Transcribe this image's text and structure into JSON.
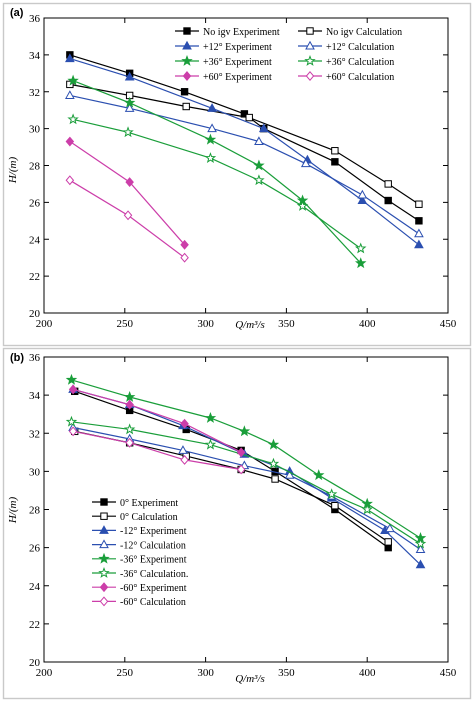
{
  "figure": {
    "frame_color": "#c9c9c9",
    "caption": ""
  },
  "chart_data": [
    {
      "panel_label": "(a)",
      "type": "line",
      "xlabel": "Q/m³/s",
      "ylabel": "H/(m)",
      "xlim": [
        200,
        450
      ],
      "ylim": [
        20,
        36
      ],
      "xticks": [
        200,
        250,
        300,
        350,
        400,
        450
      ],
      "yticks": [
        20,
        22,
        24,
        26,
        28,
        30,
        32,
        34,
        36
      ],
      "grid": false,
      "legend_position": "top-right",
      "legend_columns": 2,
      "series": [
        {
          "name": "No igv Experiment",
          "color": "#000000",
          "marker": "filled-square",
          "x": [
            216,
            253,
            287,
            324,
            336,
            380,
            413,
            432
          ],
          "y": [
            34.0,
            33.0,
            32.0,
            30.8,
            30.0,
            28.2,
            26.1,
            25.0
          ]
        },
        {
          "name": "No igv  Calculation",
          "color": "#000000",
          "marker": "open-square",
          "x": [
            216,
            253,
            288,
            327,
            380,
            413,
            432
          ],
          "y": [
            32.4,
            31.8,
            31.2,
            30.6,
            28.8,
            27.0,
            25.9
          ]
        },
        {
          "name": "+12° Experiment",
          "color": "#2b4fb0",
          "marker": "filled-triangle",
          "x": [
            216,
            253,
            304,
            336,
            363,
            397,
            432
          ],
          "y": [
            33.8,
            32.8,
            31.1,
            30.0,
            28.3,
            26.1,
            23.7
          ]
        },
        {
          "name": "+12° Calculation",
          "color": "#2b4fb0",
          "marker": "open-triangle",
          "x": [
            216,
            253,
            304,
            333,
            362,
            397,
            432
          ],
          "y": [
            31.8,
            31.1,
            30.0,
            29.3,
            28.1,
            26.4,
            24.3
          ]
        },
        {
          "name": "+36° Experiment",
          "color": "#1a9e3a",
          "marker": "filled-star",
          "x": [
            218,
            253,
            303,
            333,
            360,
            396
          ],
          "y": [
            32.6,
            31.4,
            29.4,
            28.0,
            26.1,
            22.7
          ]
        },
        {
          "name": "+36° Calculation",
          "color": "#1a9e3a",
          "marker": "open-star",
          "x": [
            218,
            252,
            303,
            333,
            360,
            396
          ],
          "y": [
            30.5,
            29.8,
            28.4,
            27.2,
            25.8,
            23.5
          ]
        },
        {
          "name": "+60° Experiment",
          "color": "#cc3ea9",
          "marker": "filled-diamond",
          "x": [
            216,
            253,
            287
          ],
          "y": [
            29.3,
            27.1,
            23.7
          ]
        },
        {
          "name": "+60° Calculation",
          "color": "#cc3ea9",
          "marker": "open-diamond",
          "x": [
            216,
            252,
            287
          ],
          "y": [
            27.2,
            25.3,
            23.0
          ]
        }
      ]
    },
    {
      "panel_label": "(b)",
      "type": "line",
      "xlabel": "Q/m³/s",
      "ylabel": "H/(m)",
      "xlim": [
        200,
        450
      ],
      "ylim": [
        20,
        36
      ],
      "xticks": [
        200,
        250,
        300,
        350,
        400,
        450
      ],
      "yticks": [
        20,
        22,
        24,
        26,
        28,
        30,
        32,
        34,
        36
      ],
      "grid": false,
      "legend_position": "bottom-left",
      "legend_columns": 1,
      "series": [
        {
          "name": "0° Experiment",
          "color": "#000000",
          "marker": "filled-square",
          "x": [
            219,
            253,
            288,
            322,
            343,
            380,
            413
          ],
          "y": [
            34.2,
            33.2,
            32.2,
            31.1,
            30.0,
            28.0,
            26.0
          ]
        },
        {
          "name": "0° Calculation",
          "color": "#000000",
          "marker": "open-square",
          "x": [
            219,
            253,
            288,
            322,
            343,
            380,
            413
          ],
          "y": [
            32.1,
            31.5,
            30.8,
            30.1,
            29.6,
            28.2,
            26.3
          ]
        },
        {
          "name": "-12° Experiment",
          "color": "#2b4fb0",
          "marker": "filled-triangle",
          "x": [
            218,
            253,
            286,
            324,
            352,
            378,
            411,
            433
          ],
          "y": [
            34.3,
            33.5,
            32.4,
            30.9,
            30.0,
            28.6,
            26.9,
            25.1
          ]
        },
        {
          "name": "-12° Calculation",
          "color": "#2b4fb0",
          "marker": "open-triangle",
          "x": [
            218,
            253,
            286,
            324,
            352,
            378,
            414,
            433
          ],
          "y": [
            32.3,
            31.7,
            31.1,
            30.3,
            29.8,
            28.7,
            27.0,
            25.9
          ]
        },
        {
          "name": "-36° Experiment",
          "color": "#1a9e3a",
          "marker": "filled-star",
          "x": [
            217,
            253,
            303,
            324,
            342,
            370,
            400,
            433
          ],
          "y": [
            34.8,
            33.9,
            32.8,
            32.1,
            31.4,
            29.8,
            28.3,
            26.5
          ]
        },
        {
          "name": "-36° Calculation.",
          "color": "#1a9e3a",
          "marker": "open-star",
          "x": [
            217,
            253,
            303,
            342,
            378,
            400,
            433
          ],
          "y": [
            32.6,
            32.2,
            31.4,
            30.4,
            28.8,
            28.0,
            26.2
          ]
        },
        {
          "name": "-60° Experiment",
          "color": "#cc3ea9",
          "marker": "filled-diamond",
          "x": [
            218,
            253,
            287,
            322
          ],
          "y": [
            34.3,
            33.5,
            32.5,
            31.0
          ]
        },
        {
          "name": "-60° Calculation",
          "color": "#cc3ea9",
          "marker": "open-diamond",
          "x": [
            218,
            253,
            287,
            322
          ],
          "y": [
            32.1,
            31.5,
            30.6,
            30.1
          ]
        }
      ]
    }
  ]
}
